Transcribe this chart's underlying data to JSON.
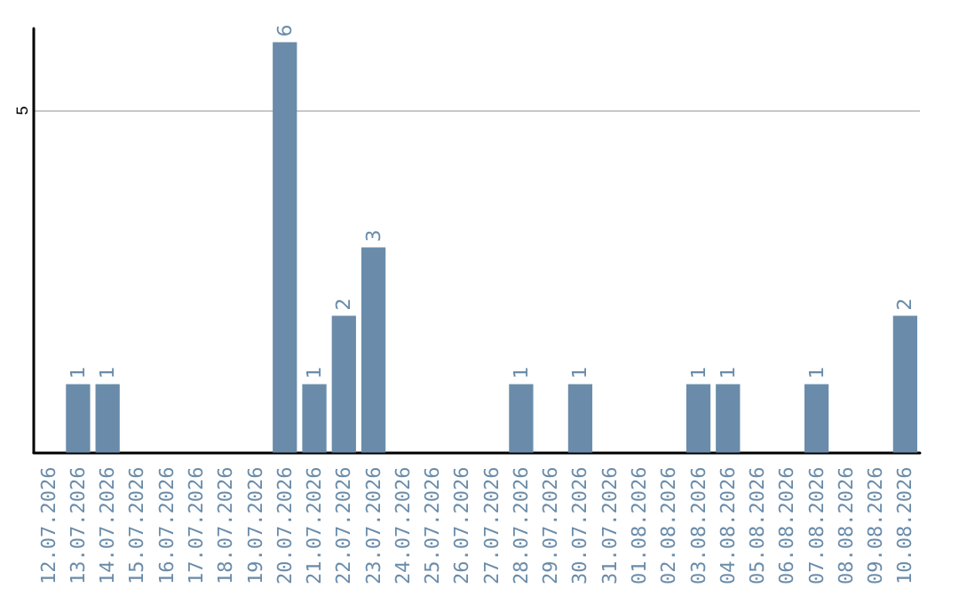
{
  "chart_data": {
    "type": "bar",
    "categories": [
      "12.07.2026",
      "13.07.2026",
      "14.07.2026",
      "15.07.2026",
      "16.07.2026",
      "17.07.2026",
      "18.07.2026",
      "19.07.2026",
      "20.07.2026",
      "21.07.2026",
      "22.07.2026",
      "23.07.2026",
      "24.07.2026",
      "25.07.2026",
      "26.07.2026",
      "27.07.2026",
      "28.07.2026",
      "29.07.2026",
      "30.07.2026",
      "31.07.2026",
      "01.08.2026",
      "02.08.2026",
      "03.08.2026",
      "04.08.2026",
      "05.08.2026",
      "06.08.2026",
      "07.08.2026",
      "08.08.2026",
      "09.08.2026",
      "10.08.2026"
    ],
    "values": [
      0,
      1,
      1,
      0,
      0,
      0,
      0,
      0,
      6,
      1,
      2,
      3,
      0,
      0,
      0,
      0,
      1,
      0,
      1,
      0,
      0,
      0,
      1,
      1,
      0,
      0,
      1,
      0,
      0,
      2
    ],
    "value_labels": [
      null,
      "1",
      "1",
      null,
      null,
      null,
      null,
      null,
      "6",
      "1",
      "2",
      "3",
      null,
      null,
      null,
      null,
      "1",
      null,
      "1",
      null,
      null,
      null,
      "1",
      "1",
      null,
      null,
      "1",
      null,
      null,
      "2"
    ],
    "color": "#6a8caa",
    "ylim": [
      0,
      6.2
    ],
    "yticks": [
      5
    ],
    "grid": "y"
  }
}
